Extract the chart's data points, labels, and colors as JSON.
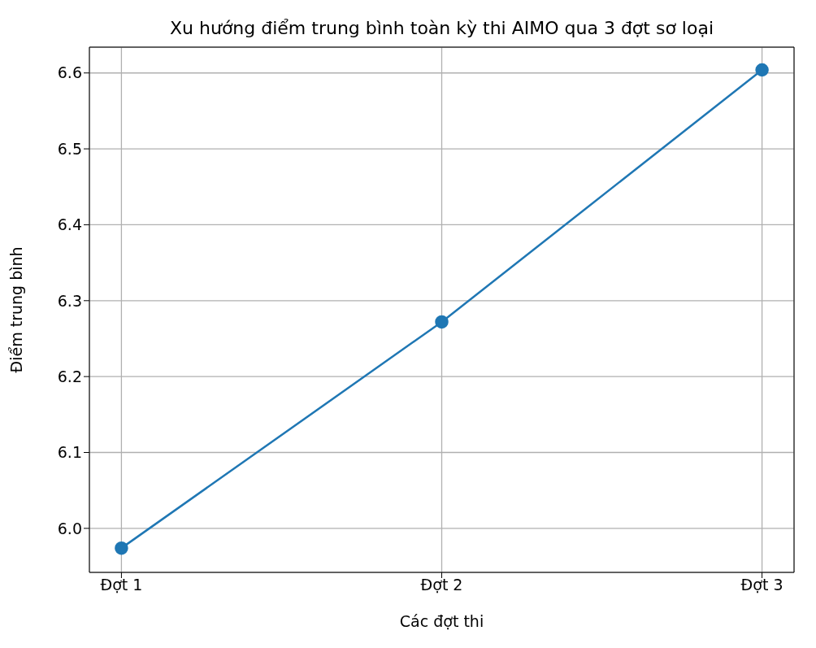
{
  "chart_data": {
    "type": "line",
    "title": "Xu hướng điểm trung bình toàn kỳ thi AIMO qua 3 đợt sơ loại",
    "xlabel": "Các đợt thi",
    "ylabel": "Điểm trung bình",
    "categories": [
      "Đợt 1",
      "Đợt 2",
      "Đợt 3"
    ],
    "series": [
      {
        "color": "#1f77b4",
        "values": [
          5.974,
          6.272,
          6.604
        ]
      }
    ],
    "ylim": [
      5.942,
      6.634
    ],
    "yticks": [
      {
        "value": 6,
        "label": "6.0"
      },
      6.1,
      6.2,
      6.3,
      6.4,
      6.5,
      6.6
    ],
    "grid": true,
    "marker": "circle",
    "line_style": "solid"
  }
}
